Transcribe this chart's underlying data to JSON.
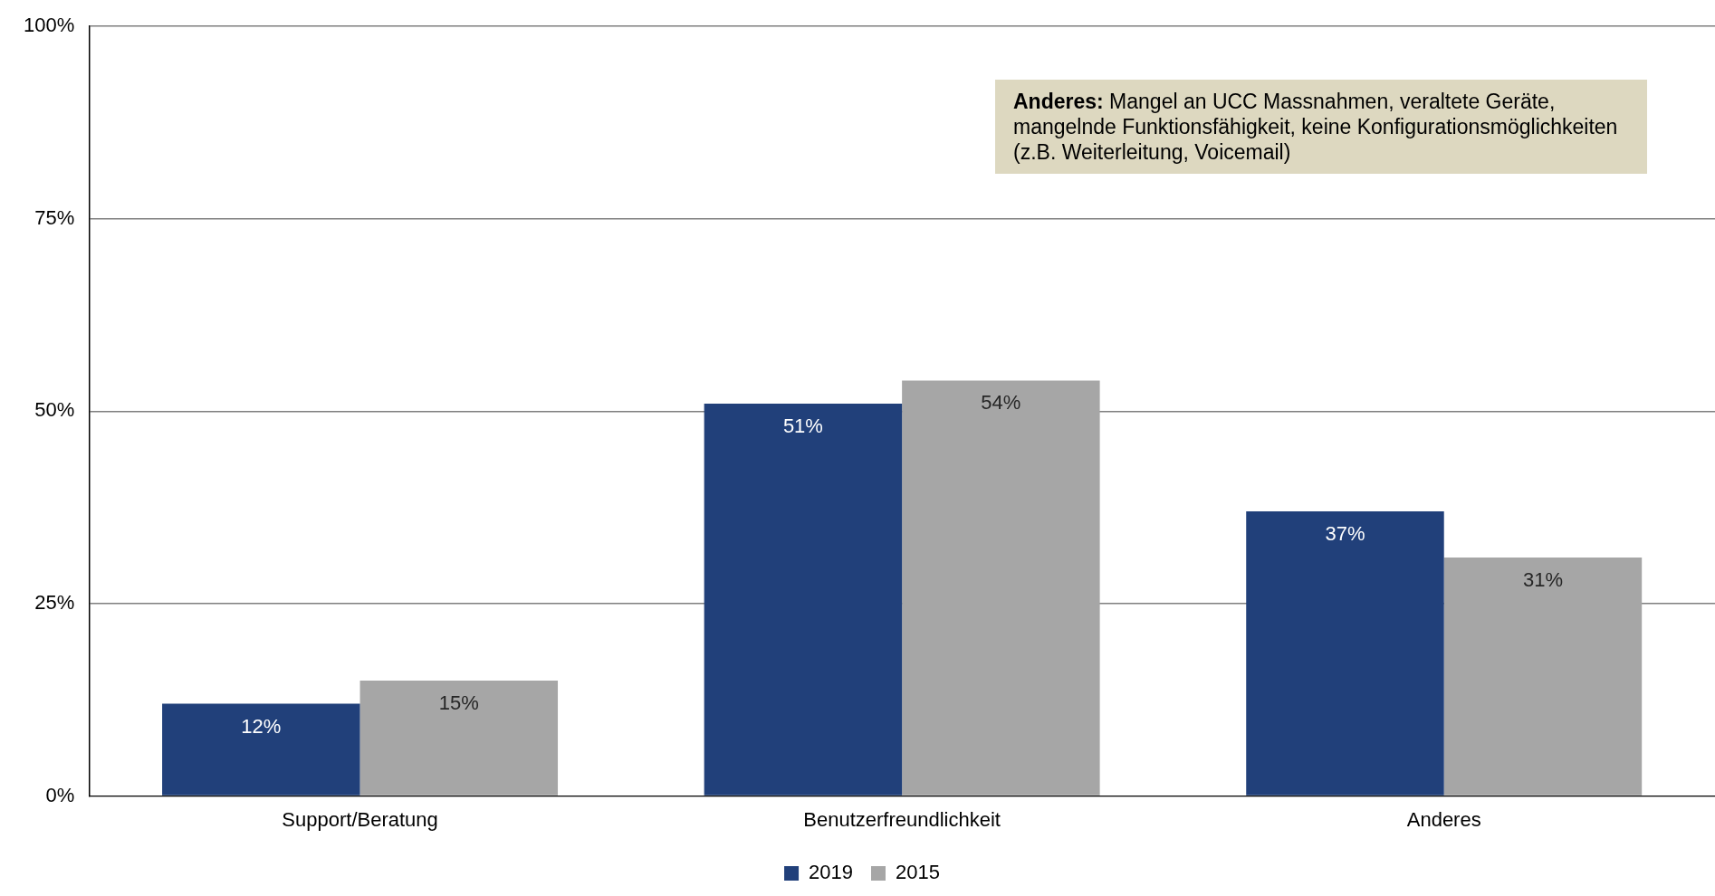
{
  "chart_data": {
    "type": "bar",
    "categories": [
      "Support/Beratung",
      "Benutzerfreundlichkeit",
      "Anderes"
    ],
    "series": [
      {
        "name": "2019",
        "color": "#21407a",
        "values": [
          12,
          51,
          37
        ],
        "value_labels": [
          "12%",
          "51%",
          "37%"
        ]
      },
      {
        "name": "2015",
        "color": "#a6a6a6",
        "values": [
          15,
          54,
          31
        ],
        "value_labels": [
          "15%",
          "54%",
          "31%"
        ]
      }
    ],
    "ylim": [
      0,
      100
    ],
    "yticks": [
      {
        "value": 0,
        "label": "0%"
      },
      {
        "value": 25,
        "label": "25%"
      },
      {
        "value": 50,
        "label": "50%"
      },
      {
        "value": 75,
        "label": "75%"
      },
      {
        "value": 100,
        "label": "100%"
      }
    ],
    "grid": "y",
    "legend": "bottom",
    "annotations": [
      "Anderes: Mangel an UCC Massnahmen, veraltete Geräte, mangelnde Funktionsfähigkeit, keine Konfigurationsmöglichkeiten (z.B. Weiterleitung, Voicemail)"
    ]
  }
}
